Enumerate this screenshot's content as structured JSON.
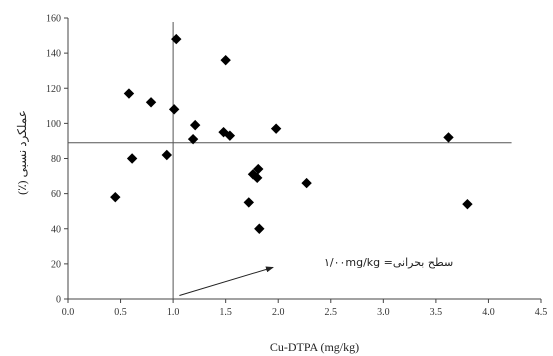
{
  "chart_data": {
    "type": "scatter",
    "xlabel": "Cu-DTPA (mg/kg)",
    "ylabel": "عملکرد نسبی (٪)",
    "xlim": [
      0,
      4.5
    ],
    "ylim": [
      0,
      160
    ],
    "xticks": [
      "0.0",
      "0.5",
      "1.0",
      "1.5",
      "2.0",
      "2.5",
      "3.0",
      "3.5",
      "4.0",
      "4.5"
    ],
    "yticks": [
      "0",
      "20",
      "40",
      "60",
      "80",
      "100",
      "120",
      "140",
      "160"
    ],
    "grid": false,
    "marker": "diamond",
    "marker_color": "#000000",
    "x": [
      0.45,
      0.58,
      0.61,
      0.79,
      0.94,
      1.01,
      1.03,
      1.19,
      1.21,
      1.48,
      1.5,
      1.54,
      1.72,
      1.76,
      1.8,
      1.81,
      1.82,
      1.98,
      2.27,
      3.62,
      3.8
    ],
    "y": [
      58,
      117,
      80,
      112,
      82,
      108,
      148,
      91,
      99,
      95,
      136,
      93,
      55,
      71,
      69,
      74,
      40,
      97,
      66,
      92,
      54
    ],
    "reference_lines": {
      "vertical_x": 1.0,
      "horizontal_y": 89
    },
    "annotation": {
      "text": "سطح بحرانی= ۱/۰۰mg/kg",
      "arrow_from": [
        1.06,
        2
      ],
      "arrow_to": [
        1.95,
        18
      ]
    }
  }
}
